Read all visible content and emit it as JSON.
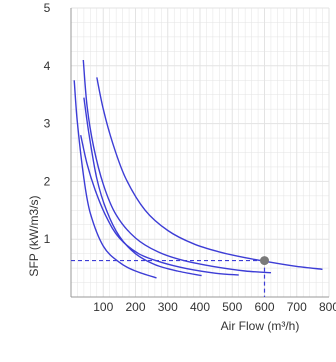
{
  "chart_data": {
    "type": "line",
    "xlabel": "Air Flow (m³/h)",
    "ylabel": "SFP (kW/m3/s)",
    "xlim": [
      0,
      800
    ],
    "ylim": [
      0,
      5
    ],
    "x_ticks": [
      100,
      200,
      300,
      400,
      500,
      600,
      700,
      800
    ],
    "y_ticks": [
      1,
      2,
      3,
      4,
      5
    ],
    "grid": true,
    "colors": {
      "curve": "#3d3dd6",
      "grid": "#e3e3e3",
      "marker": "#7a7a7a",
      "axis": "#999999"
    },
    "series": [
      {
        "values": [
          [
            10,
            3.75
          ],
          [
            20,
            3.0
          ],
          [
            40,
            2.05
          ],
          [
            60,
            1.45
          ],
          [
            100,
            0.88
          ],
          [
            150,
            0.6
          ],
          [
            200,
            0.45
          ],
          [
            265,
            0.33
          ]
        ]
      },
      {
        "values": [
          [
            40,
            3.45
          ],
          [
            55,
            2.85
          ],
          [
            80,
            2.05
          ],
          [
            110,
            1.5
          ],
          [
            150,
            1.05
          ],
          [
            200,
            0.75
          ],
          [
            260,
            0.56
          ],
          [
            330,
            0.45
          ],
          [
            405,
            0.37
          ]
        ]
      },
      {
        "values": [
          [
            30,
            2.8
          ],
          [
            50,
            2.3
          ],
          [
            75,
            1.85
          ],
          [
            110,
            1.38
          ],
          [
            150,
            1.02
          ],
          [
            210,
            0.75
          ],
          [
            280,
            0.6
          ],
          [
            360,
            0.49
          ],
          [
            450,
            0.41
          ],
          [
            520,
            0.38
          ]
        ]
      },
      {
        "values": [
          [
            38,
            4.1
          ],
          [
            50,
            3.3
          ],
          [
            70,
            2.6
          ],
          [
            100,
            1.95
          ],
          [
            140,
            1.42
          ],
          [
            200,
            1.02
          ],
          [
            270,
            0.78
          ],
          [
            350,
            0.63
          ],
          [
            440,
            0.53
          ],
          [
            540,
            0.45
          ],
          [
            620,
            0.42
          ]
        ]
      },
      {
        "values": [
          [
            80,
            3.8
          ],
          [
            100,
            3.25
          ],
          [
            130,
            2.65
          ],
          [
            170,
            2.05
          ],
          [
            230,
            1.5
          ],
          [
            300,
            1.15
          ],
          [
            380,
            0.92
          ],
          [
            460,
            0.78
          ],
          [
            540,
            0.68
          ],
          [
            620,
            0.6
          ],
          [
            700,
            0.53
          ],
          [
            780,
            0.48
          ]
        ]
      }
    ],
    "operating_point": {
      "x": 600,
      "y": 0.63
    }
  }
}
